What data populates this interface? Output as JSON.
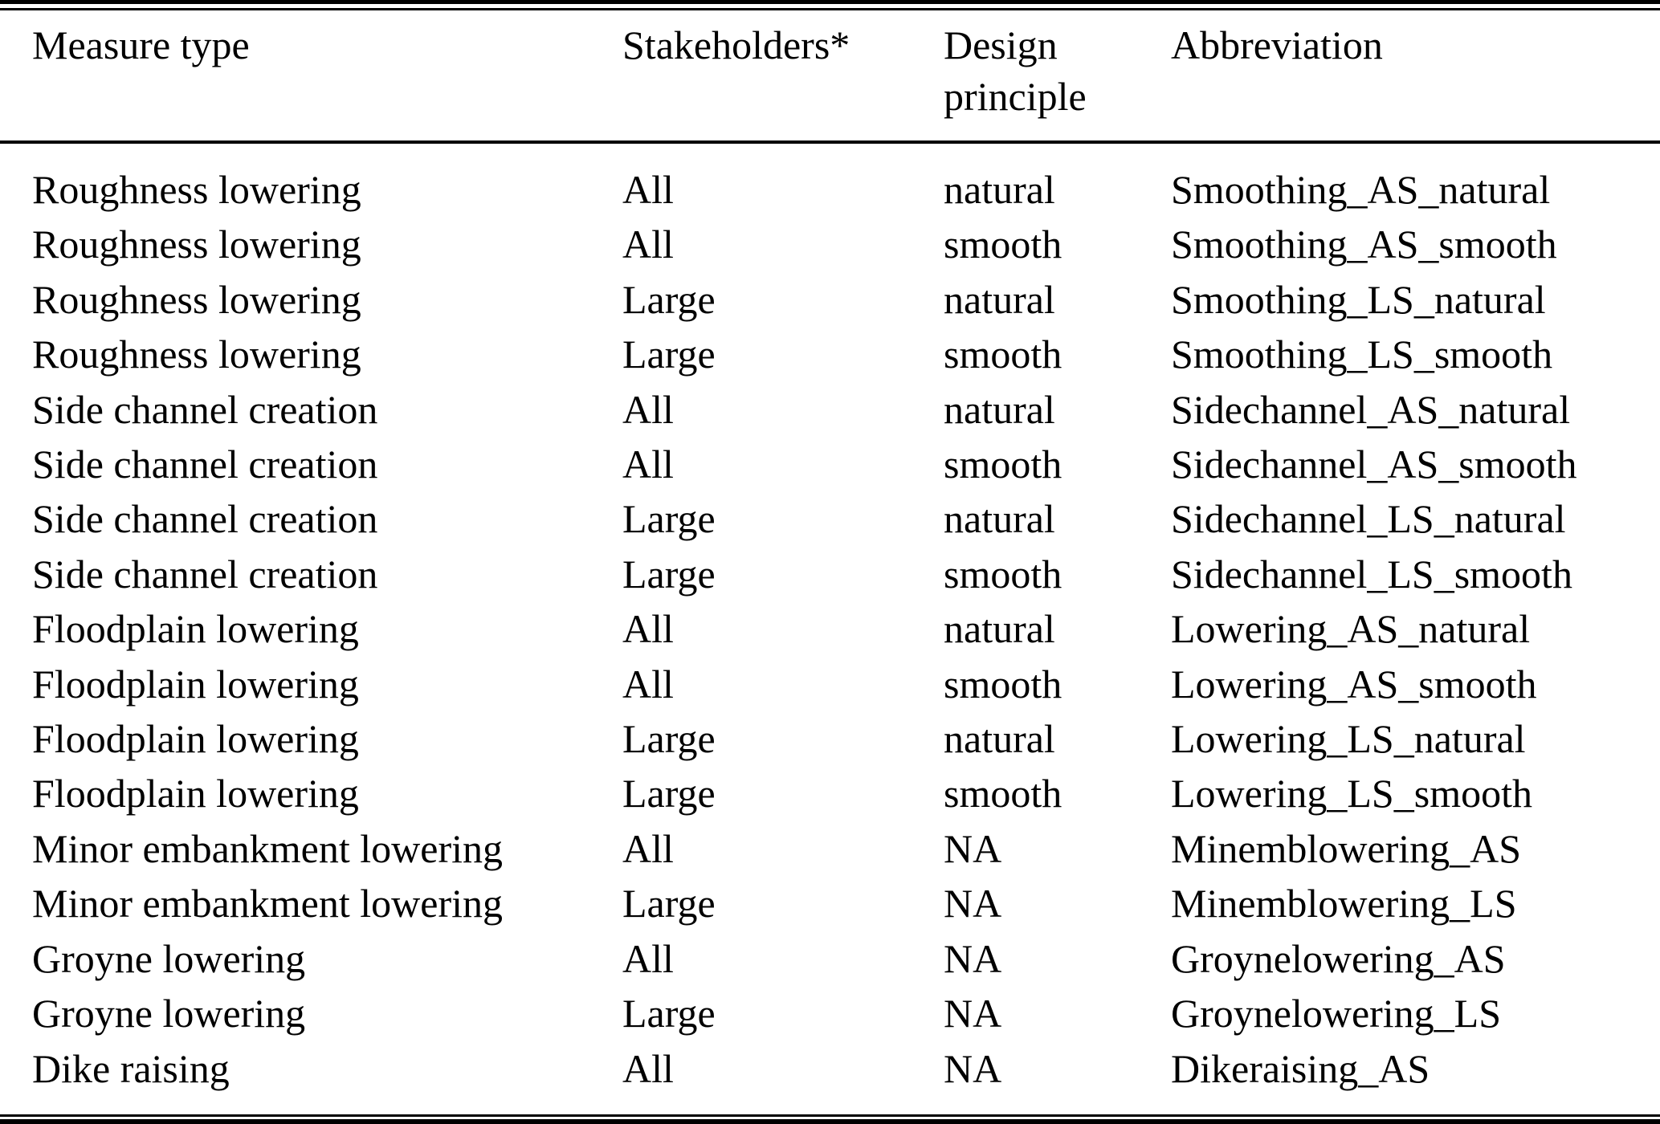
{
  "colors": {
    "text": "#000000",
    "background": "#ffffff",
    "rule": "#000000"
  },
  "table": {
    "columns": [
      {
        "label": "Measure type"
      },
      {
        "label": "Stakeholders*"
      },
      {
        "label": "Design principle"
      },
      {
        "label": "Abbreviation"
      }
    ],
    "rows": [
      [
        "Roughness lowering",
        "All",
        "natural",
        "Smoothing_AS_natural"
      ],
      [
        "Roughness lowering",
        "All",
        "smooth",
        "Smoothing_AS_smooth"
      ],
      [
        "Roughness lowering",
        "Large",
        "natural",
        "Smoothing_LS_natural"
      ],
      [
        "Roughness lowering",
        "Large",
        "smooth",
        "Smoothing_LS_smooth"
      ],
      [
        "Side channel creation",
        "All",
        "natural",
        "Sidechannel_AS_natural"
      ],
      [
        "Side channel creation",
        "All",
        "smooth",
        "Sidechannel_AS_smooth"
      ],
      [
        "Side channel creation",
        "Large",
        "natural",
        "Sidechannel_LS_natural"
      ],
      [
        "Side channel creation",
        "Large",
        "smooth",
        "Sidechannel_LS_smooth"
      ],
      [
        "Floodplain lowering",
        "All",
        "natural",
        "Lowering_AS_natural"
      ],
      [
        "Floodplain lowering",
        "All",
        "smooth",
        "Lowering_AS_smooth"
      ],
      [
        "Floodplain lowering",
        "Large",
        "natural",
        "Lowering_LS_natural"
      ],
      [
        "Floodplain lowering",
        "Large",
        "smooth",
        "Lowering_LS_smooth"
      ],
      [
        "Minor embankment lowering",
        "All",
        "NA",
        "Minemblowering_AS"
      ],
      [
        "Minor embankment lowering",
        "Large",
        "NA",
        "Minemblowering_LS"
      ],
      [
        "Groyne lowering",
        "All",
        "NA",
        "Groynelowering_AS"
      ],
      [
        "Groyne lowering",
        "Large",
        "NA",
        "Groynelowering_LS"
      ],
      [
        "Dike raising",
        "All",
        "NA",
        "Dikeraising_AS"
      ]
    ]
  }
}
